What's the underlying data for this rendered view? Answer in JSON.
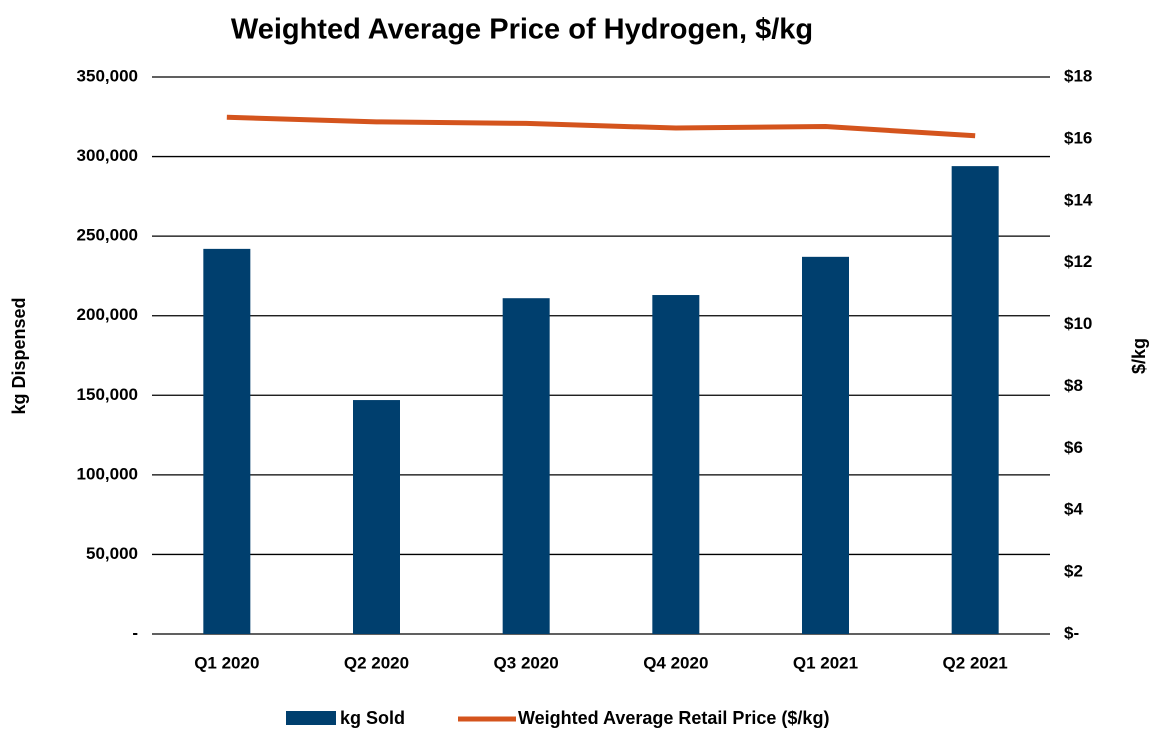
{
  "chart_data": {
    "type": "bar",
    "title": "Weighted Average Price of Hydrogen, $/kg",
    "y_label": "kg Dispensed",
    "y2_label": "$/kg",
    "categories": [
      "Q1 2020",
      "Q2 2020",
      "Q3 2020",
      "Q4 2020",
      "Q1 2021",
      "Q2 2021"
    ],
    "series": [
      {
        "name": "kg Sold",
        "type": "bar",
        "axis": "y",
        "color": "#003f6e",
        "values": [
          242000,
          147000,
          211000,
          213000,
          237000,
          294000
        ]
      },
      {
        "name": "Weighted Average Retail Price ($/kg)",
        "type": "line",
        "axis": "y2",
        "color": "#d4541d",
        "values": [
          16.7,
          16.55,
          16.5,
          16.35,
          16.4,
          16.1
        ]
      }
    ],
    "ylim": [
      0,
      350000
    ],
    "yticks": [
      {
        "value": 0,
        "label": "-"
      },
      {
        "value": 50000,
        "label": "50,000"
      },
      {
        "value": 100000,
        "label": "100,000"
      },
      {
        "value": 150000,
        "label": "150,000"
      },
      {
        "value": 200000,
        "label": "200,000"
      },
      {
        "value": 250000,
        "label": "250,000"
      },
      {
        "value": 300000,
        "label": "300,000"
      },
      {
        "value": 350000,
        "label": "350,000"
      }
    ],
    "y2lim": [
      0,
      18
    ],
    "y2ticks": [
      {
        "value": 0,
        "label": "$-"
      },
      {
        "value": 2,
        "label": "$2"
      },
      {
        "value": 4,
        "label": "$4"
      },
      {
        "value": 6,
        "label": "$6"
      },
      {
        "value": 8,
        "label": "$8"
      },
      {
        "value": 10,
        "label": "$10"
      },
      {
        "value": 12,
        "label": "$12"
      },
      {
        "value": 14,
        "label": "$14"
      },
      {
        "value": 16,
        "label": "$16"
      },
      {
        "value": 18,
        "label": "$18"
      }
    ],
    "grid": true,
    "legend": "bottom"
  }
}
